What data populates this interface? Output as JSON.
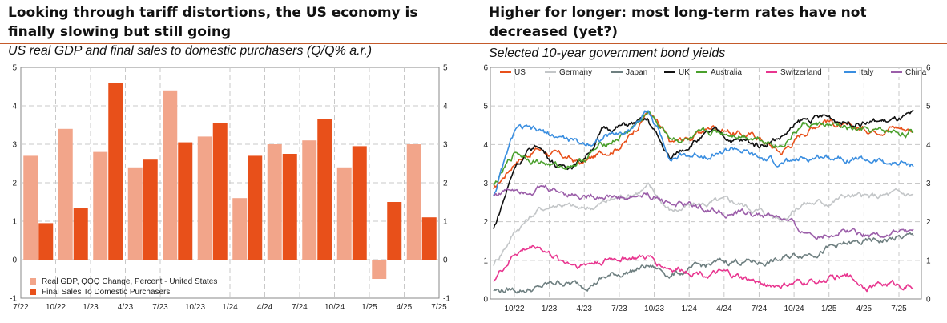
{
  "left": {
    "title_line1": "Looking through tariff distortions, the US economy is",
    "title_line2": "finally slowing but still going",
    "subtitle": "US real GDP and final sales to domestic purchasers (Q/Q% a.r.)"
  },
  "right": {
    "title_line1": "Higher for longer: most long-term rates have not",
    "title_line2": "decreased (yet?)",
    "subtitle": "Selected 10-year government bond yields"
  },
  "chart_data": [
    {
      "type": "bar",
      "x_tick_labels": [
        "7/22",
        "10/22",
        "1/23",
        "4/23",
        "7/23",
        "10/23",
        "1/24",
        "4/24",
        "7/24",
        "10/24",
        "1/25",
        "4/25",
        "7/25"
      ],
      "categories": [
        "Q3 2022",
        "Q4 2022",
        "Q1 2023",
        "Q2 2023",
        "Q3 2023",
        "Q4 2023",
        "Q1 2024",
        "Q2 2024",
        "Q3 2024",
        "Q4 2024",
        "Q1 2025",
        "Q2 2025"
      ],
      "ylim": [
        -1,
        5
      ],
      "y_ticks": [
        -1,
        0,
        1,
        2,
        3,
        4,
        5
      ],
      "series": [
        {
          "name": "Real GDP, QOQ Change, Percent - United States",
          "color": "#f2a58a",
          "values": [
            2.7,
            3.4,
            2.8,
            2.4,
            4.4,
            3.2,
            1.6,
            3.0,
            3.1,
            2.4,
            -0.5,
            3.0
          ]
        },
        {
          "name": "Final Sales To Domestic Purchasers",
          "color": "#e8501a",
          "values": [
            0.95,
            1.35,
            4.6,
            2.6,
            3.05,
            3.55,
            2.7,
            2.75,
            3.65,
            2.95,
            1.5,
            1.1
          ]
        }
      ],
      "legend": "bottom-left",
      "grid": true
    },
    {
      "type": "line",
      "x_tick_labels": [
        "10/22",
        "1/23",
        "4/23",
        "7/23",
        "10/23",
        "1/24",
        "4/24",
        "7/24",
        "10/24",
        "1/25",
        "4/25",
        "7/25"
      ],
      "x_range": [
        "2022-08",
        "2025-09"
      ],
      "ylim": [
        0,
        6
      ],
      "y_ticks": [
        0,
        1,
        2,
        3,
        4,
        5,
        6
      ],
      "legend": "top",
      "grid": true,
      "series": [
        {
          "name": "US",
          "color": "#e8501a",
          "values": [
            2.8,
            3.6,
            3.9,
            3.7,
            3.5,
            3.8,
            4.1,
            4.9,
            4.0,
            4.2,
            4.5,
            4.3,
            4.2,
            3.8,
            4.3,
            4.7,
            4.4,
            4.4,
            4.5,
            4.4
          ]
        },
        {
          "name": "Germany",
          "color": "#c3c6c8",
          "values": [
            0.9,
            1.8,
            2.3,
            2.5,
            2.3,
            2.5,
            2.7,
            2.9,
            2.3,
            2.4,
            2.5,
            2.5,
            2.3,
            2.1,
            2.5,
            2.5,
            2.7,
            2.6,
            2.7,
            2.7
          ]
        },
        {
          "name": "Japan",
          "color": "#6e7f80",
          "values": [
            0.22,
            0.25,
            0.27,
            0.45,
            0.35,
            0.55,
            0.7,
            0.85,
            0.65,
            0.75,
            0.9,
            1.0,
            0.95,
            1.0,
            1.2,
            1.3,
            1.4,
            1.45,
            1.55,
            1.6
          ]
        },
        {
          "name": "UK",
          "color": "#111111",
          "values": [
            1.8,
            3.5,
            4.0,
            3.4,
            3.6,
            4.4,
            4.5,
            4.6,
            3.6,
            4.1,
            4.3,
            4.1,
            4.0,
            4.2,
            4.6,
            4.7,
            4.6,
            4.6,
            4.6,
            4.7
          ]
        },
        {
          "name": "Australia",
          "color": "#4aa02c",
          "values": [
            2.9,
            3.8,
            3.6,
            3.4,
            3.6,
            4.0,
            4.3,
            4.8,
            4.2,
            4.1,
            4.3,
            4.3,
            4.2,
            4.0,
            4.5,
            4.5,
            4.4,
            4.3,
            4.3,
            4.3
          ]
        },
        {
          "name": "Switzerland",
          "color": "#e8358f",
          "values": [
            0.5,
            1.2,
            1.4,
            1.0,
            0.9,
            1.0,
            1.1,
            1.05,
            0.8,
            0.75,
            0.65,
            0.55,
            0.4,
            0.35,
            0.4,
            0.5,
            0.55,
            0.35,
            0.4,
            0.35
          ]
        },
        {
          "name": "Italy",
          "color": "#3a8ee0",
          "values": [
            2.7,
            4.4,
            4.3,
            4.2,
            4.0,
            4.2,
            4.3,
            4.9,
            3.7,
            3.7,
            3.8,
            3.9,
            3.6,
            3.5,
            3.6,
            3.7,
            3.7,
            3.6,
            3.5,
            3.5
          ]
        },
        {
          "name": "China",
          "color": "#9b5ea9",
          "values": [
            2.7,
            2.9,
            2.9,
            2.8,
            2.7,
            2.7,
            2.6,
            2.7,
            2.5,
            2.4,
            2.3,
            2.2,
            2.2,
            2.1,
            1.7,
            1.7,
            1.8,
            1.7,
            1.7,
            1.75
          ]
        }
      ]
    }
  ]
}
